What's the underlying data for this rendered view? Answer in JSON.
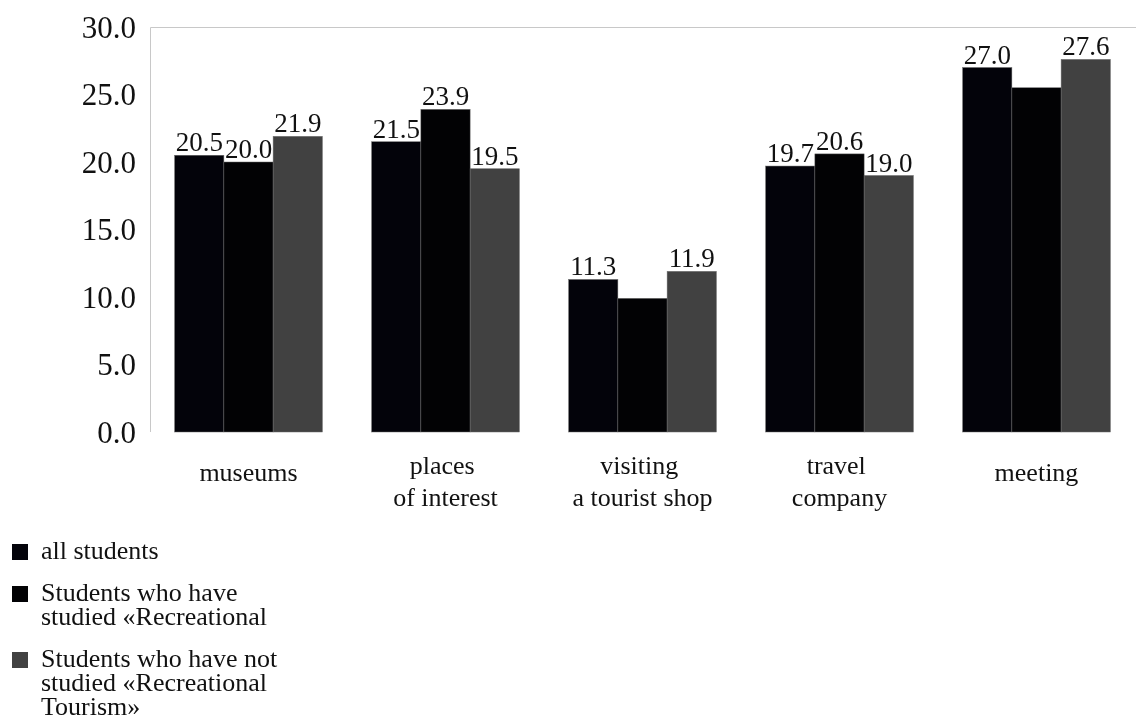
{
  "chart_data": {
    "type": "bar",
    "categories": [
      "museums",
      "places\nof interest",
      "visiting\na tourist shop",
      "travel\ncompany",
      "meeting"
    ],
    "series": [
      {
        "name": "all students",
        "color": "#03030a",
        "values": [
          20.5,
          21.5,
          11.3,
          19.7,
          27.0
        ],
        "value_labels": [
          "20.5",
          "21.5",
          "11.3",
          "19.7",
          "27.0"
        ]
      },
      {
        "name": "Students who have\nstudied «Recreational",
        "color": "#020204",
        "values": [
          20.0,
          23.9,
          9.9,
          20.6,
          25.5
        ],
        "value_labels": [
          "20.0",
          "23.9",
          null,
          "20.6",
          null
        ]
      },
      {
        "name": "Students who have not\nstudied «Recreational\nTourism»",
        "color": "#414141",
        "values": [
          21.9,
          19.5,
          11.9,
          19.0,
          27.6
        ],
        "value_labels": [
          "21.9",
          "19.5",
          "11.9",
          "19.0",
          "27.6"
        ]
      }
    ],
    "ylim": [
      0,
      30
    ],
    "yticks": [
      {
        "value": 0,
        "label": "0.0"
      },
      {
        "value": 5,
        "label": "5.0"
      },
      {
        "value": 10,
        "label": "10.0"
      },
      {
        "value": 15,
        "label": "15.0"
      },
      {
        "value": 20,
        "label": "20.0"
      },
      {
        "value": 25,
        "label": "25.0"
      },
      {
        "value": 30,
        "label": "30.0"
      }
    ],
    "legend": "bottom left"
  }
}
